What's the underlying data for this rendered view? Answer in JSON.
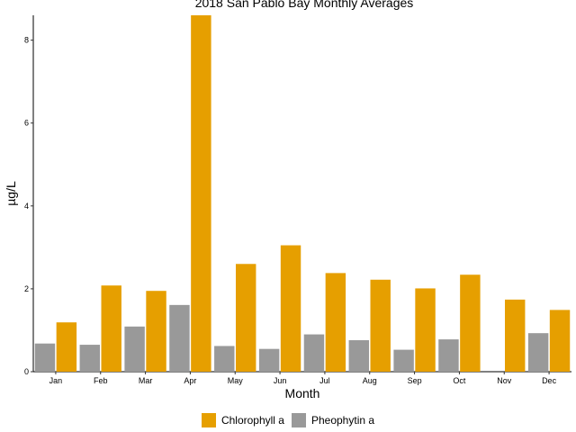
{
  "chart_data": {
    "type": "bar",
    "title": "2018 San Pablo Bay Monthly Averages",
    "xlabel": "Month",
    "ylabel": "µg/L",
    "categories": [
      "Jan",
      "Feb",
      "Mar",
      "Apr",
      "May",
      "Jun",
      "Jul",
      "Aug",
      "Sep",
      "Oct",
      "Nov",
      "Dec"
    ],
    "series": [
      {
        "name": "Pheophytin a",
        "color": "#999999",
        "values": [
          0.68,
          0.65,
          1.09,
          1.61,
          0.62,
          0.55,
          0.9,
          0.76,
          0.53,
          0.78,
          null,
          0.93
        ]
      },
      {
        "name": "Chlorophyll a",
        "color": "#E69F00",
        "values": [
          1.19,
          2.08,
          1.95,
          8.6,
          2.6,
          3.05,
          2.38,
          2.22,
          2.01,
          2.34,
          1.74,
          1.49
        ]
      }
    ],
    "ylim": [
      0,
      8.6
    ],
    "yticks": [
      0,
      2,
      4,
      6,
      8
    ],
    "grid": false,
    "legend_position": "bottom"
  },
  "legend": {
    "items": [
      {
        "label": "Chlorophyll a",
        "color": "#E69F00"
      },
      {
        "label": "Pheophytin a",
        "color": "#999999"
      }
    ]
  }
}
